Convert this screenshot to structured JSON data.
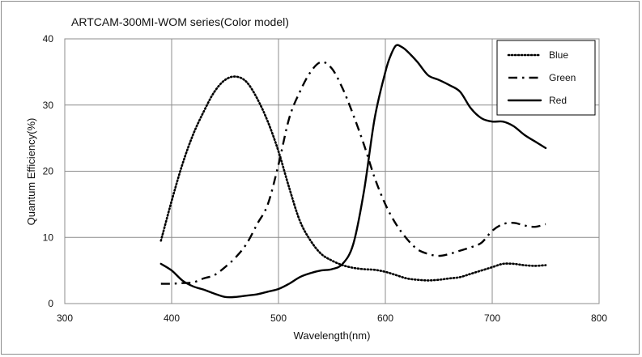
{
  "chart_data": {
    "type": "line",
    "title": "ARTCAM-300MI-WOM series(Color model)",
    "xlabel": "Wavelength(nm)",
    "ylabel": "Quantum Efficiency(%)",
    "xlim": [
      300,
      800
    ],
    "ylim": [
      0,
      40
    ],
    "xticks": [
      300,
      400,
      500,
      600,
      700,
      800
    ],
    "yticks": [
      0,
      10,
      20,
      30,
      40
    ],
    "xtick_labels": [
      "300",
      "400",
      "500",
      "600",
      "700",
      "800"
    ],
    "ytick_labels": [
      "0",
      "10",
      "20",
      "30",
      "40"
    ],
    "grid": true,
    "legend_position": "top-right",
    "series": [
      {
        "name": "Blue",
        "style": "dotted",
        "x": [
          390,
          400,
          410,
          420,
          430,
          440,
          450,
          460,
          470,
          480,
          490,
          500,
          510,
          520,
          530,
          540,
          550,
          560,
          570,
          580,
          590,
          600,
          610,
          620,
          630,
          640,
          650,
          660,
          670,
          680,
          690,
          700,
          710,
          720,
          730,
          740,
          750
        ],
        "y": [
          9.5,
          15.5,
          21,
          25.5,
          29,
          32,
          33.8,
          34.3,
          33.5,
          31,
          27.5,
          23,
          17.5,
          12.5,
          9.5,
          7.5,
          6.5,
          5.8,
          5.4,
          5.2,
          5.1,
          4.8,
          4.3,
          3.8,
          3.6,
          3.5,
          3.6,
          3.8,
          4.0,
          4.5,
          5.0,
          5.5,
          6.0,
          6.0,
          5.8,
          5.7,
          5.8
        ]
      },
      {
        "name": "Green",
        "style": "dashdot",
        "x": [
          390,
          400,
          410,
          420,
          430,
          440,
          450,
          460,
          470,
          480,
          490,
          500,
          510,
          520,
          530,
          540,
          550,
          560,
          570,
          580,
          590,
          600,
          610,
          620,
          630,
          640,
          650,
          660,
          670,
          680,
          690,
          700,
          710,
          720,
          730,
          740,
          750
        ],
        "y": [
          3,
          3,
          3.1,
          3.2,
          3.8,
          4.3,
          5.5,
          7,
          9,
          12,
          15,
          21,
          28,
          32,
          35,
          36.5,
          35.5,
          32.5,
          28.5,
          24,
          19,
          15,
          12,
          9.8,
          8.2,
          7.5,
          7.2,
          7.5,
          8,
          8.5,
          9.2,
          11,
          12,
          12.2,
          11.8,
          11.6,
          12
        ]
      },
      {
        "name": "Red",
        "style": "solid",
        "x": [
          390,
          400,
          410,
          420,
          430,
          440,
          450,
          460,
          470,
          480,
          490,
          500,
          510,
          520,
          530,
          540,
          550,
          560,
          570,
          580,
          590,
          600,
          605,
          610,
          615,
          620,
          630,
          640,
          650,
          660,
          670,
          680,
          690,
          700,
          710,
          720,
          730,
          740,
          750
        ],
        "y": [
          6,
          5,
          3.5,
          2.6,
          2.1,
          1.5,
          1.0,
          1.0,
          1.2,
          1.4,
          1.8,
          2.2,
          3,
          4,
          4.6,
          5,
          5.2,
          6,
          9,
          17,
          28,
          35,
          37.5,
          39,
          38.8,
          38.2,
          36.5,
          34.5,
          33.8,
          33,
          32,
          29.5,
          28,
          27.5,
          27.5,
          26.8,
          25.5,
          24.5,
          23.5
        ]
      }
    ]
  }
}
